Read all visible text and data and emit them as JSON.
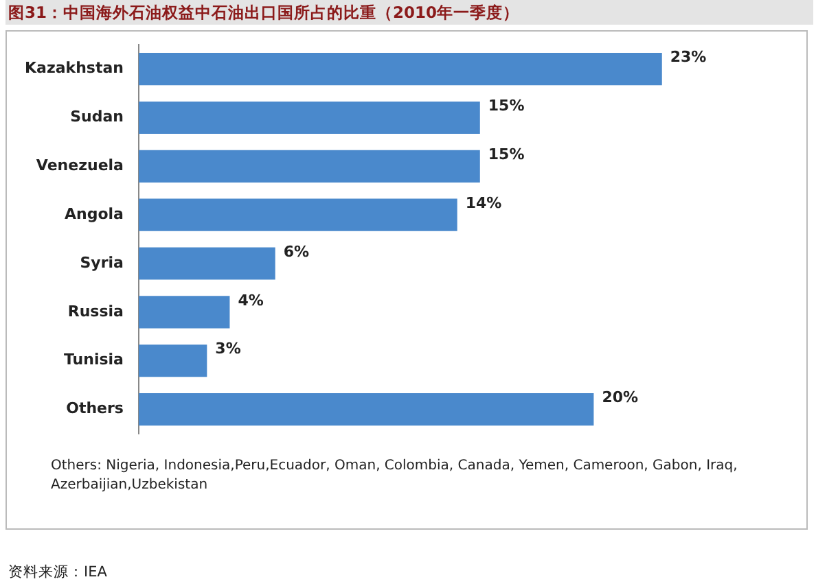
{
  "chart_data": {
    "type": "bar",
    "orientation": "horizontal",
    "title": "图31：中国海外石油权益中石油出口国所占的比重（2010年一季度）",
    "categories": [
      "Kazakhstan",
      "Sudan",
      "Venezuela",
      "Angola",
      "Syria",
      "Russia",
      "Tunisia",
      "Others"
    ],
    "values": [
      23,
      15,
      15,
      14,
      6,
      4,
      3,
      20
    ],
    "value_labels": [
      "23%",
      "15%",
      "15%",
      "14%",
      "6%",
      "4%",
      "3%",
      "20%"
    ],
    "color": "#4a89cc",
    "relative": false,
    "grid": false,
    "legend": false,
    "annotations": [
      "Others: Nigeria, Indonesia,Peru,Ecuador, Oman, Colombia, Canada, Yemen, Cameroon, Gabon, Iraq, Azerbaijian,Uzbekistan",
      "资料来源：IEA"
    ]
  }
}
